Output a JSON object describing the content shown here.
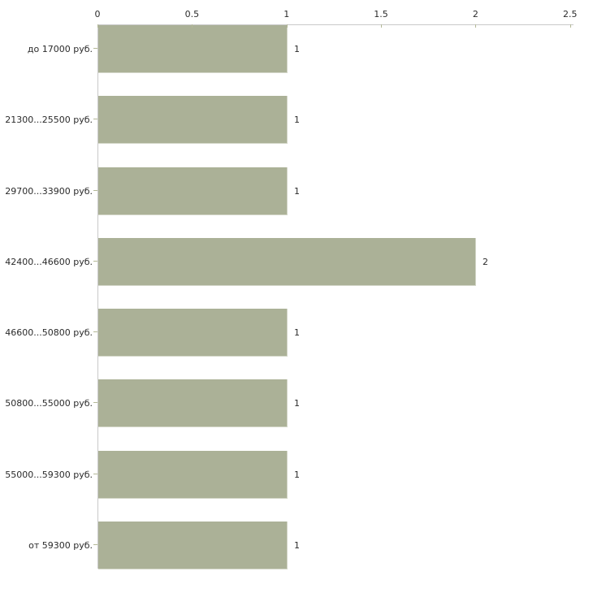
{
  "chart_data": {
    "type": "bar",
    "orientation": "horizontal",
    "title": "",
    "xlabel": "",
    "ylabel": "",
    "categories": [
      "до 17000 руб.",
      "21300...25500 руб.",
      "29700...33900 руб.",
      "42400...46600 руб.",
      "46600...50800 руб.",
      "50800...55000 руб.",
      "55000...59300 руб.",
      "от 59300 руб."
    ],
    "values": [
      1,
      1,
      1,
      2,
      1,
      1,
      1,
      1
    ],
    "value_labels": [
      "1",
      "1",
      "1",
      "2",
      "1",
      "1",
      "1",
      "1"
    ],
    "xlim": [
      0,
      2.5
    ],
    "x_ticks": [
      0,
      0.5,
      1,
      1.5,
      2,
      2.5
    ],
    "x_tick_labels": [
      "0",
      "0.5",
      "1",
      "1.5",
      "2",
      "2.5"
    ],
    "axis_position": "top",
    "grid": false,
    "legend": false,
    "colors": {
      "bar_fill": "#abb197",
      "bar_edge": "#d3d6c8",
      "axis_line": "#c9c9c9",
      "tick_mark": "#b3b897",
      "text": "#2b2b2b",
      "background": "#ffffff"
    }
  }
}
